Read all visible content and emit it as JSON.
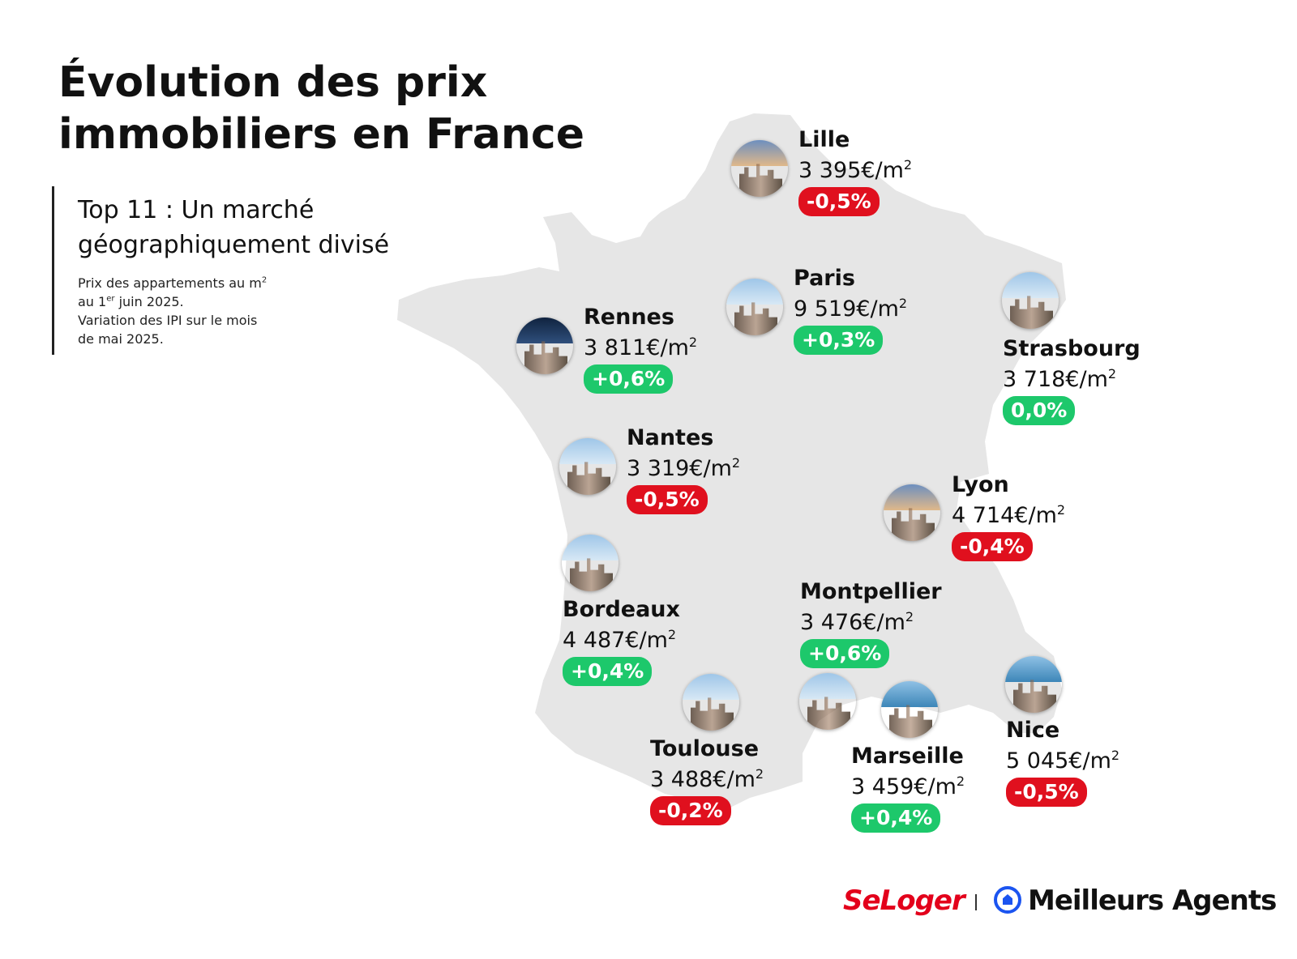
{
  "title": {
    "line1": "Évolution des prix",
    "line2": "immobiliers en France"
  },
  "subtitle": {
    "line1": "Top 11 :  Un marché",
    "line2": "géographiquement divisé"
  },
  "note": {
    "line1": "Prix des appartements au m",
    "line1_sup": "2",
    "line2_pre": "au 1",
    "line2_sup": "er",
    "line2_post": " juin 2025.",
    "line3": "Variation des IPI sur le mois",
    "line4": "de mai 2025."
  },
  "colors": {
    "map_fill": "#e6e6e6",
    "positive": "#1dc86b",
    "negative": "#e0101e",
    "seloger_red": "#e3001b",
    "meilleurs_agents_blue": "#1b54f0"
  },
  "cities": [
    {
      "name": "Lille",
      "price": "3 395€/m",
      "unit_sup": "2",
      "variation": "-0,5%",
      "trend": "negative"
    },
    {
      "name": "Paris",
      "price": "9 519€/m",
      "unit_sup": "2",
      "variation": "+0,3%",
      "trend": "positive"
    },
    {
      "name": "Rennes",
      "price": "3 811€/m",
      "unit_sup": "2",
      "variation": "+0,6%",
      "trend": "positive"
    },
    {
      "name": "Strasbourg",
      "price": "3 718€/m",
      "unit_sup": "2",
      "variation": "0,0%",
      "trend": "positive"
    },
    {
      "name": "Nantes",
      "price": "3 319€/m",
      "unit_sup": "2",
      "variation": "-0,5%",
      "trend": "negative"
    },
    {
      "name": "Lyon",
      "price": "4 714€/m",
      "unit_sup": "2",
      "variation": "-0,4%",
      "trend": "negative"
    },
    {
      "name": "Bordeaux",
      "price": "4 487€/m",
      "unit_sup": "2",
      "variation": "+0,4%",
      "trend": "positive"
    },
    {
      "name": "Montpellier",
      "price": "3 476€/m",
      "unit_sup": "2",
      "variation": "+0,6%",
      "trend": "positive"
    },
    {
      "name": "Toulouse",
      "price": "3 488€/m",
      "unit_sup": "2",
      "variation": "-0,2%",
      "trend": "negative"
    },
    {
      "name": "Marseille",
      "price": "3 459€/m",
      "unit_sup": "2",
      "variation": "+0,4%",
      "trend": "positive"
    },
    {
      "name": "Nice",
      "price": "5 045€/m",
      "unit_sup": "2",
      "variation": "-0,5%",
      "trend": "negative"
    }
  ],
  "branding": {
    "seloger": "SeLoger",
    "meilleurs_agents": "Meilleurs Agents",
    "meilleurs_agents_icon": "house-circle-icon"
  }
}
